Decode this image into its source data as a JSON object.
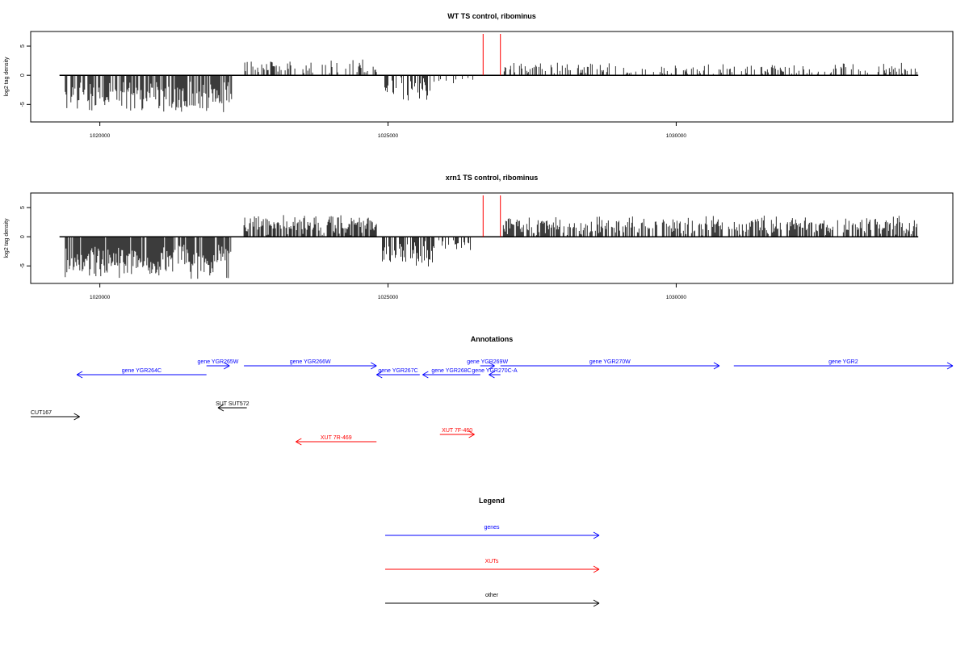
{
  "chart_data": [
    {
      "type": "bar",
      "title": "WT TS control, ribominus",
      "xlabel": "",
      "ylabel": "log2 tag density",
      "xlim": [
        1018800,
        1034800
      ],
      "ylim": [
        -8,
        7.5
      ],
      "xticks": [
        1020000,
        1025000,
        1030000
      ],
      "xtick_labels": [
        "1020000",
        "1025000",
        "1030000"
      ],
      "yticks": [
        -5,
        0,
        5
      ],
      "ytick_labels": [
        "-5",
        "0",
        "5"
      ],
      "baseline_span": [
        1019300,
        1034200
      ],
      "red_markers": [
        1026650,
        1026950
      ],
      "series": [
        {
          "name": "minus_strand_wide",
          "x_range": [
            1019400,
            1022300
          ],
          "amp": 4.2,
          "jitter": 2.2,
          "sign": -1,
          "density": 3.2
        },
        {
          "name": "plus_strand_sparse",
          "x_range": [
            1022500,
            1024800
          ],
          "amp": 1.6,
          "jitter": 1.4,
          "sign": 1,
          "density": 1.4
        },
        {
          "name": "minus_strand_mid",
          "x_range": [
            1024900,
            1025800
          ],
          "amp": 2.8,
          "jitter": 1.8,
          "sign": -1,
          "density": 2.4
        },
        {
          "name": "minus_strand_low",
          "x_range": [
            1025800,
            1026500
          ],
          "amp": 1.2,
          "jitter": 0.8,
          "sign": -1,
          "density": 0.8
        },
        {
          "name": "plus_strand_long",
          "x_range": [
            1027000,
            1034200
          ],
          "amp": 1.2,
          "jitter": 1.4,
          "sign": 1,
          "density": 1.3
        }
      ]
    },
    {
      "type": "bar",
      "title": "xrn1 TS control, ribominus",
      "xlabel": "",
      "ylabel": "log2 tag density",
      "xlim": [
        1018800,
        1034800
      ],
      "ylim": [
        -8,
        7.5
      ],
      "xticks": [
        1020000,
        1025000,
        1030000
      ],
      "xtick_labels": [
        "1020000",
        "1025000",
        "1030000"
      ],
      "yticks": [
        -5,
        0,
        5
      ],
      "ytick_labels": [
        "-5",
        "0",
        "5"
      ],
      "baseline_span": [
        1019300,
        1034200
      ],
      "red_markers": [
        1026650,
        1026950
      ],
      "series": [
        {
          "name": "minus_strand_wide",
          "x_range": [
            1019400,
            1022300
          ],
          "amp": 4.8,
          "jitter": 2.0,
          "sign": -1,
          "density": 4.0
        },
        {
          "name": "plus_strand_dense",
          "x_range": [
            1022500,
            1024800
          ],
          "amp": 2.4,
          "jitter": 1.8,
          "sign": 1,
          "density": 3.2
        },
        {
          "name": "minus_strand_mid",
          "x_range": [
            1024900,
            1025800
          ],
          "amp": 3.6,
          "jitter": 1.8,
          "sign": -1,
          "density": 3.0
        },
        {
          "name": "minus_strand_low",
          "x_range": [
            1025800,
            1026500
          ],
          "amp": 1.5,
          "jitter": 1.0,
          "sign": -1,
          "density": 1.4
        },
        {
          "name": "plus_strand_long",
          "x_range": [
            1027000,
            1034200
          ],
          "amp": 2.2,
          "jitter": 1.6,
          "sign": 1,
          "density": 2.8
        }
      ]
    }
  ],
  "annotations": {
    "title": "Annotations",
    "features": [
      {
        "label": "gene YGR264C",
        "start": 1019600,
        "end": 1021850,
        "strand": "-",
        "color": "#0000ff",
        "row": 1
      },
      {
        "label": "gene YGR265W",
        "start": 1021850,
        "end": 1022250,
        "strand": "+",
        "color": "#0000ff",
        "row": 0
      },
      {
        "label": "gene YGR266W",
        "start": 1022500,
        "end": 1024800,
        "strand": "+",
        "color": "#0000ff",
        "row": 0
      },
      {
        "label": "gene YGR267C",
        "start": 1024800,
        "end": 1025550,
        "strand": "-",
        "color": "#0000ff",
        "row": 1
      },
      {
        "label": "gene YGR268C",
        "start": 1025600,
        "end": 1026600,
        "strand": "-",
        "color": "#0000ff",
        "row": 1
      },
      {
        "label": "gene YGR269W",
        "start": 1026600,
        "end": 1026850,
        "strand": "+",
        "color": "#0000ff",
        "row": 0
      },
      {
        "label": "gene YGR270C-A",
        "start": 1026750,
        "end": 1026950,
        "strand": "-",
        "color": "#0000ff",
        "row": 1
      },
      {
        "label": "gene YGR270W",
        "start": 1026950,
        "end": 1030750,
        "strand": "+",
        "color": "#0000ff",
        "row": 0
      },
      {
        "label": "gene YGR2",
        "start": 1031000,
        "end": 1034800,
        "strand": "+",
        "color": "#0000ff",
        "row": 0
      },
      {
        "label": "CUT167",
        "start": 1018800,
        "end": 1019650,
        "strand": "+",
        "color": "#000000",
        "row": 2
      },
      {
        "label": "SUT SUT572",
        "start": 1022050,
        "end": 1022550,
        "strand": "-",
        "color": "#000000",
        "row": 3
      },
      {
        "label": "XUT 7R-469",
        "start": 1023400,
        "end": 1024800,
        "strand": "-",
        "color": "#ff0000",
        "row": 5
      },
      {
        "label": "XUT 7F-460",
        "start": 1025900,
        "end": 1026500,
        "strand": "+",
        "color": "#ff0000",
        "row": 4
      }
    ]
  },
  "legend": {
    "title": "Legend",
    "items": [
      {
        "label": "genes",
        "color": "#0000ff"
      },
      {
        "label": "XUTs",
        "color": "#ff0000"
      },
      {
        "label": "other",
        "color": "#000000"
      }
    ]
  }
}
